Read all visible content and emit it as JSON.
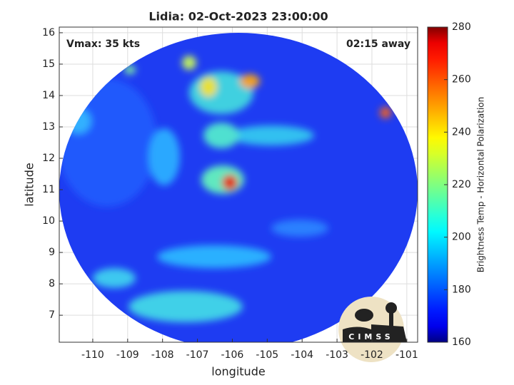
{
  "chart_data": {
    "type": "image",
    "title": "Lidia: 02-Oct-2023 23:00:00",
    "annotations": [
      "Vmax: 35 kts",
      "02:15 away"
    ],
    "x_label": "longitude",
    "y_label": "latitude",
    "xlim": [
      -110.96,
      -100.69
    ],
    "xticks": [
      -110,
      -109,
      -108,
      -107,
      -106,
      -105,
      -104,
      -103,
      -102,
      -101
    ],
    "ylim": [
      6.14,
      16.18
    ],
    "yticks": [
      7,
      8,
      9,
      10,
      11,
      12,
      13,
      14,
      15,
      16
    ],
    "grid": true,
    "colormap": "jet",
    "colorbar": {
      "label": "Brightness Temp - Horizontal Polarization",
      "lim": [
        160,
        280
      ],
      "ticks": [
        160,
        180,
        200,
        220,
        240,
        260,
        280
      ]
    },
    "logo_text": "CIMSS"
  }
}
